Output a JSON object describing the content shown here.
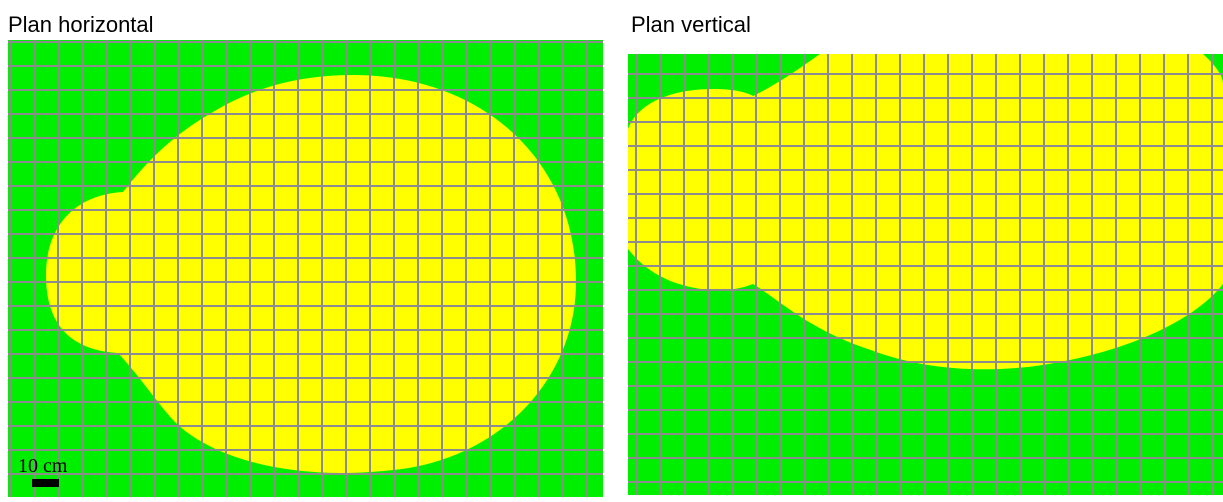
{
  "panels": {
    "horizontal": {
      "title": "Plan horizontal"
    },
    "vertical": {
      "title": "Plan vertical"
    }
  },
  "scale_bar": {
    "label": "10 cm"
  },
  "colors": {
    "background_fill": "#00ee00",
    "shape_fill": "#ffff00",
    "grid_line": "#8c8c8c"
  }
}
